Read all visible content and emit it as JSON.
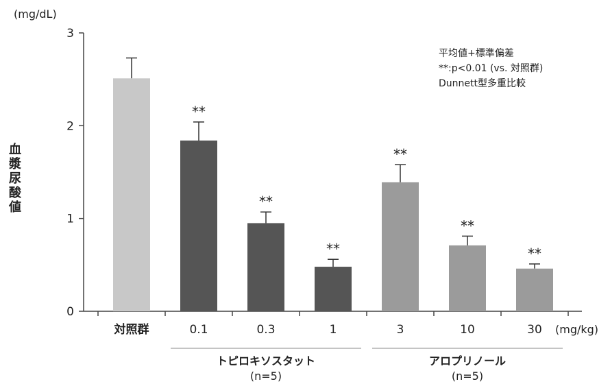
{
  "chart_data": {
    "type": "bar",
    "ylabel": "血漿尿酸値",
    "y_unit": "(mg/dL)",
    "x_unit": "(mg/kg)",
    "ylim": [
      0,
      3
    ],
    "yticks": [
      "0",
      "1",
      "2",
      "3"
    ],
    "categories": [
      "対照群",
      "0.1",
      "0.3",
      "1",
      "3",
      "10",
      "30"
    ],
    "values": [
      2.51,
      1.84,
      0.95,
      0.48,
      1.39,
      0.71,
      0.46
    ],
    "errors": [
      0.22,
      0.2,
      0.12,
      0.08,
      0.19,
      0.1,
      0.05
    ],
    "significance": [
      "",
      "**",
      "**",
      "**",
      "**",
      "**",
      "**"
    ],
    "bar_colors": [
      "#c8c8c8",
      "#555555",
      "#555555",
      "#555555",
      "#9b9b9b",
      "#9b9b9b",
      "#9b9b9b"
    ],
    "groups": [
      {
        "name": "トピロキソスタット",
        "n": "(n=5)",
        "members": [
          1,
          2,
          3
        ]
      },
      {
        "name": "アロプリノール",
        "n": "(n=5)",
        "members": [
          4,
          5,
          6
        ]
      }
    ],
    "annotations": [
      "平均値+標準偏差",
      "**:p<0.01 (vs. 対照群)",
      "Dunnett型多重比較"
    ],
    "grid": false,
    "legend": "none"
  }
}
